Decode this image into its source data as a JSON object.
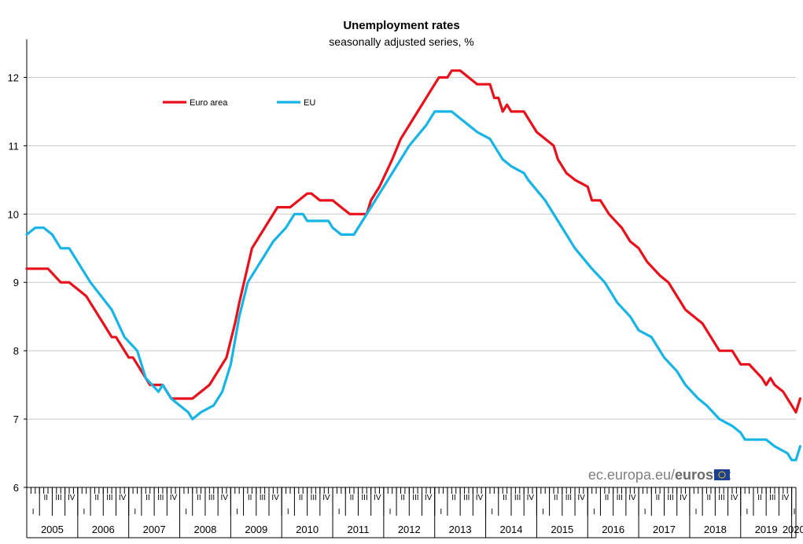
{
  "chart_data": {
    "type": "line",
    "title": "Unemployment rates",
    "subtitle": "seasonally adjusted series, %",
    "xlabel": "",
    "ylabel": "",
    "ylim": [
      6,
      12.5
    ],
    "yticks": [
      6,
      7,
      8,
      9,
      10,
      11,
      12
    ],
    "grid": true,
    "legend_position": "top-left",
    "x_start": "2005-01",
    "x_end": "2020-02",
    "years": [
      "2005",
      "2006",
      "2007",
      "2008",
      "2009",
      "2010",
      "2011",
      "2012",
      "2013",
      "2014",
      "2015",
      "2016",
      "2017",
      "2018",
      "2019",
      "2020"
    ],
    "quarter_labels": [
      "I",
      "II",
      "III",
      "IV"
    ],
    "series": [
      {
        "name": "Euro area",
        "color": "#e8101a",
        "keypoints": [
          [
            "2005-01",
            9.2
          ],
          [
            "2005-06",
            9.2
          ],
          [
            "2005-09",
            9.0
          ],
          [
            "2005-11",
            9.0
          ],
          [
            "2006-03",
            8.8
          ],
          [
            "2006-07",
            8.4
          ],
          [
            "2006-09",
            8.2
          ],
          [
            "2006-10",
            8.2
          ],
          [
            "2007-01",
            7.9
          ],
          [
            "2007-02",
            7.9
          ],
          [
            "2007-06",
            7.5
          ],
          [
            "2007-09",
            7.5
          ],
          [
            "2007-11",
            7.3
          ],
          [
            "2008-04",
            7.3
          ],
          [
            "2008-08",
            7.5
          ],
          [
            "2008-12",
            7.9
          ],
          [
            "2009-02",
            8.4
          ],
          [
            "2009-03",
            8.7
          ],
          [
            "2009-06",
            9.5
          ],
          [
            "2009-10",
            9.9
          ],
          [
            "2009-12",
            10.1
          ],
          [
            "2010-03",
            10.1
          ],
          [
            "2010-07",
            10.3
          ],
          [
            "2010-08",
            10.3
          ],
          [
            "2010-10",
            10.2
          ],
          [
            "2011-01",
            10.2
          ],
          [
            "2011-03",
            10.1
          ],
          [
            "2011-05",
            10.0
          ],
          [
            "2011-09",
            10.0
          ],
          [
            "2011-10",
            10.2
          ],
          [
            "2011-12",
            10.4
          ],
          [
            "2012-03",
            10.8
          ],
          [
            "2012-05",
            11.1
          ],
          [
            "2012-09",
            11.5
          ],
          [
            "2012-12",
            11.8
          ],
          [
            "2013-02",
            12.0
          ],
          [
            "2013-04",
            12.0
          ],
          [
            "2013-05",
            12.1
          ],
          [
            "2013-07",
            12.1
          ],
          [
            "2013-09",
            12.0
          ],
          [
            "2013-11",
            11.9
          ],
          [
            "2014-02",
            11.9
          ],
          [
            "2014-03",
            11.7
          ],
          [
            "2014-04",
            11.7
          ],
          [
            "2014-05",
            11.5
          ],
          [
            "2014-06",
            11.6
          ],
          [
            "2014-07",
            11.5
          ],
          [
            "2014-10",
            11.5
          ],
          [
            "2014-11",
            11.4
          ],
          [
            "2015-01",
            11.2
          ],
          [
            "2015-05",
            11.0
          ],
          [
            "2015-06",
            10.8
          ],
          [
            "2015-08",
            10.6
          ],
          [
            "2015-10",
            10.5
          ],
          [
            "2016-01",
            10.4
          ],
          [
            "2016-02",
            10.2
          ],
          [
            "2016-04",
            10.2
          ],
          [
            "2016-06",
            10.0
          ],
          [
            "2016-09",
            9.8
          ],
          [
            "2016-11",
            9.6
          ],
          [
            "2017-01",
            9.5
          ],
          [
            "2017-03",
            9.3
          ],
          [
            "2017-06",
            9.1
          ],
          [
            "2017-08",
            9.0
          ],
          [
            "2017-10",
            8.8
          ],
          [
            "2017-12",
            8.6
          ],
          [
            "2018-02",
            8.5
          ],
          [
            "2018-04",
            8.4
          ],
          [
            "2018-06",
            8.2
          ],
          [
            "2018-08",
            8.0
          ],
          [
            "2018-11",
            8.0
          ],
          [
            "2019-01",
            7.8
          ],
          [
            "2019-03",
            7.8
          ],
          [
            "2019-06",
            7.6
          ],
          [
            "2019-07",
            7.5
          ],
          [
            "2019-08",
            7.6
          ],
          [
            "2019-09",
            7.5
          ],
          [
            "2019-11",
            7.4
          ],
          [
            "2019-12",
            7.3
          ],
          [
            "2020-01",
            7.2
          ],
          [
            "2020-02",
            7.1
          ],
          [
            "2020-03",
            7.3
          ]
        ]
      },
      {
        "name": "EU",
        "color": "#18b4e5",
        "keypoints": [
          [
            "2005-01",
            9.7
          ],
          [
            "2005-03",
            9.8
          ],
          [
            "2005-05",
            9.8
          ],
          [
            "2005-07",
            9.7
          ],
          [
            "2005-09",
            9.5
          ],
          [
            "2005-11",
            9.5
          ],
          [
            "2006-04",
            9.0
          ],
          [
            "2006-09",
            8.6
          ],
          [
            "2006-12",
            8.2
          ],
          [
            "2007-03",
            8.0
          ],
          [
            "2007-05",
            7.6
          ],
          [
            "2007-08",
            7.4
          ],
          [
            "2007-09",
            7.5
          ],
          [
            "2007-11",
            7.3
          ],
          [
            "2008-01",
            7.2
          ],
          [
            "2008-03",
            7.1
          ],
          [
            "2008-04",
            7.0
          ],
          [
            "2008-06",
            7.1
          ],
          [
            "2008-09",
            7.2
          ],
          [
            "2008-11",
            7.4
          ],
          [
            "2009-01",
            7.8
          ],
          [
            "2009-03",
            8.5
          ],
          [
            "2009-05",
            9.0
          ],
          [
            "2009-08",
            9.3
          ],
          [
            "2009-11",
            9.6
          ],
          [
            "2010-02",
            9.8
          ],
          [
            "2010-04",
            10.0
          ],
          [
            "2010-06",
            10.0
          ],
          [
            "2010-07",
            9.9
          ],
          [
            "2010-12",
            9.9
          ],
          [
            "2011-01",
            9.8
          ],
          [
            "2011-03",
            9.7
          ],
          [
            "2011-06",
            9.7
          ],
          [
            "2011-08",
            9.9
          ],
          [
            "2011-10",
            10.1
          ],
          [
            "2012-01",
            10.4
          ],
          [
            "2012-04",
            10.7
          ],
          [
            "2012-07",
            11.0
          ],
          [
            "2012-11",
            11.3
          ],
          [
            "2013-01",
            11.5
          ],
          [
            "2013-05",
            11.5
          ],
          [
            "2013-07",
            11.4
          ],
          [
            "2013-09",
            11.3
          ],
          [
            "2013-11",
            11.2
          ],
          [
            "2014-02",
            11.1
          ],
          [
            "2014-05",
            10.8
          ],
          [
            "2014-07",
            10.7
          ],
          [
            "2014-10",
            10.6
          ],
          [
            "2014-11",
            10.5
          ],
          [
            "2015-03",
            10.2
          ],
          [
            "2015-06",
            9.9
          ],
          [
            "2015-08",
            9.7
          ],
          [
            "2015-10",
            9.5
          ],
          [
            "2016-02",
            9.2
          ],
          [
            "2016-05",
            9.0
          ],
          [
            "2016-08",
            8.7
          ],
          [
            "2016-11",
            8.5
          ],
          [
            "2017-01",
            8.3
          ],
          [
            "2017-04",
            8.2
          ],
          [
            "2017-07",
            7.9
          ],
          [
            "2017-10",
            7.7
          ],
          [
            "2017-12",
            7.5
          ],
          [
            "2018-03",
            7.3
          ],
          [
            "2018-05",
            7.2
          ],
          [
            "2018-08",
            7.0
          ],
          [
            "2018-11",
            6.9
          ],
          [
            "2019-01",
            6.8
          ],
          [
            "2019-02",
            6.7
          ],
          [
            "2019-07",
            6.7
          ],
          [
            "2019-09",
            6.6
          ],
          [
            "2019-12",
            6.5
          ],
          [
            "2020-01",
            6.4
          ],
          [
            "2020-02",
            6.4
          ],
          [
            "2020-03",
            6.6
          ]
        ]
      }
    ]
  },
  "watermark": {
    "prefix": "ec.europa.eu/",
    "brand": "eurostat"
  }
}
